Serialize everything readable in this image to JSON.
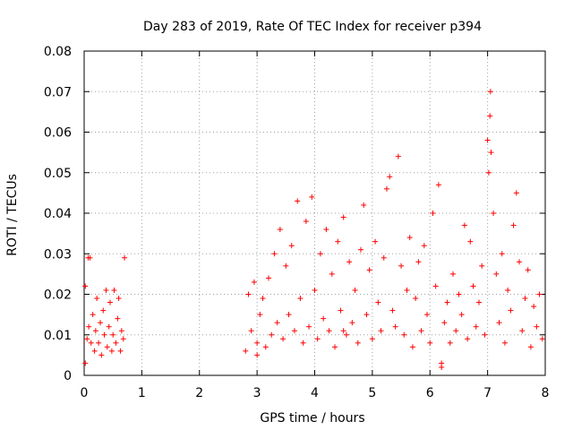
{
  "chart_data": {
    "type": "scatter",
    "title": "Day 283 of 2019, Rate Of TEC Index for receiver p394",
    "xlabel": "GPS time / hours",
    "ylabel": "ROTI / TECUs",
    "xlim": [
      0,
      8
    ],
    "ylim": [
      0,
      0.08
    ],
    "xticks": [
      "0",
      "1",
      "2",
      "3",
      "4",
      "5",
      "6",
      "7",
      "8"
    ],
    "yticks": [
      "0",
      "0.01",
      "0.02",
      "0.03",
      "0.04",
      "0.05",
      "0.06",
      "0.07",
      "0.08"
    ],
    "grid": true,
    "marker": "+",
    "color": "#ff0000",
    "series": [
      {
        "name": "ROTI",
        "points": [
          [
            0.02,
            0.022
          ],
          [
            0.05,
            0.009
          ],
          [
            0.08,
            0.012
          ],
          [
            0.1,
            0.029
          ],
          [
            0.12,
            0.008
          ],
          [
            0.15,
            0.015
          ],
          [
            0.18,
            0.006
          ],
          [
            0.2,
            0.011
          ],
          [
            0.22,
            0.019
          ],
          [
            0.25,
            0.008
          ],
          [
            0.28,
            0.013
          ],
          [
            0.3,
            0.005
          ],
          [
            0.33,
            0.016
          ],
          [
            0.35,
            0.01
          ],
          [
            0.38,
            0.021
          ],
          [
            0.4,
            0.007
          ],
          [
            0.43,
            0.012
          ],
          [
            0.45,
            0.018
          ],
          [
            0.48,
            0.006
          ],
          [
            0.5,
            0.01
          ],
          [
            0.52,
            0.021
          ],
          [
            0.55,
            0.008
          ],
          [
            0.58,
            0.014
          ],
          [
            0.6,
            0.019
          ],
          [
            0.63,
            0.006
          ],
          [
            0.65,
            0.011
          ],
          [
            0.68,
            0.009
          ],
          [
            0.7,
            0.029
          ],
          [
            0.02,
            0.003
          ],
          [
            0.07,
            0.029
          ],
          [
            2.8,
            0.006
          ],
          [
            2.85,
            0.02
          ],
          [
            2.9,
            0.011
          ],
          [
            2.95,
            0.023
          ],
          [
            3.0,
            0.008
          ],
          [
            3.05,
            0.015
          ],
          [
            3.1,
            0.019
          ],
          [
            3.15,
            0.007
          ],
          [
            3.2,
            0.024
          ],
          [
            3.25,
            0.01
          ],
          [
            3.3,
            0.03
          ],
          [
            3.35,
            0.013
          ],
          [
            3.4,
            0.036
          ],
          [
            3.45,
            0.009
          ],
          [
            3.5,
            0.027
          ],
          [
            3.55,
            0.015
          ],
          [
            3.6,
            0.032
          ],
          [
            3.65,
            0.011
          ],
          [
            3.7,
            0.043
          ],
          [
            3.75,
            0.019
          ],
          [
            3.8,
            0.008
          ],
          [
            3.85,
            0.038
          ],
          [
            3.9,
            0.012
          ],
          [
            3.95,
            0.044
          ],
          [
            4.0,
            0.021
          ],
          [
            4.05,
            0.009
          ],
          [
            4.1,
            0.03
          ],
          [
            4.15,
            0.014
          ],
          [
            4.2,
            0.036
          ],
          [
            4.25,
            0.011
          ],
          [
            4.3,
            0.025
          ],
          [
            4.35,
            0.007
          ],
          [
            4.4,
            0.033
          ],
          [
            4.45,
            0.016
          ],
          [
            4.5,
            0.039
          ],
          [
            4.55,
            0.01
          ],
          [
            4.6,
            0.028
          ],
          [
            4.65,
            0.013
          ],
          [
            4.7,
            0.021
          ],
          [
            4.75,
            0.008
          ],
          [
            4.8,
            0.031
          ],
          [
            4.85,
            0.042
          ],
          [
            4.9,
            0.015
          ],
          [
            4.95,
            0.026
          ],
          [
            5.0,
            0.009
          ],
          [
            5.05,
            0.033
          ],
          [
            5.1,
            0.018
          ],
          [
            5.15,
            0.011
          ],
          [
            5.2,
            0.029
          ],
          [
            5.25,
            0.046
          ],
          [
            5.3,
            0.049
          ],
          [
            5.35,
            0.016
          ],
          [
            5.4,
            0.012
          ],
          [
            5.45,
            0.054
          ],
          [
            5.5,
            0.027
          ],
          [
            5.55,
            0.01
          ],
          [
            5.6,
            0.021
          ],
          [
            5.65,
            0.034
          ],
          [
            5.7,
            0.007
          ],
          [
            5.75,
            0.019
          ],
          [
            5.8,
            0.028
          ],
          [
            5.85,
            0.011
          ],
          [
            5.9,
            0.032
          ],
          [
            5.95,
            0.015
          ],
          [
            6.0,
            0.008
          ],
          [
            6.05,
            0.04
          ],
          [
            6.1,
            0.022
          ],
          [
            6.15,
            0.047
          ],
          [
            6.2,
            0.003
          ],
          [
            6.25,
            0.013
          ],
          [
            6.3,
            0.018
          ],
          [
            6.35,
            0.008
          ],
          [
            6.4,
            0.025
          ],
          [
            6.45,
            0.011
          ],
          [
            6.5,
            0.02
          ],
          [
            6.55,
            0.015
          ],
          [
            6.6,
            0.037
          ],
          [
            6.65,
            0.009
          ],
          [
            6.7,
            0.033
          ],
          [
            6.75,
            0.022
          ],
          [
            6.8,
            0.012
          ],
          [
            6.85,
            0.018
          ],
          [
            6.9,
            0.027
          ],
          [
            6.95,
            0.01
          ],
          [
            7.0,
            0.058
          ],
          [
            7.02,
            0.05
          ],
          [
            7.04,
            0.064
          ],
          [
            7.05,
            0.07
          ],
          [
            7.06,
            0.055
          ],
          [
            7.1,
            0.04
          ],
          [
            7.15,
            0.025
          ],
          [
            7.2,
            0.013
          ],
          [
            7.25,
            0.03
          ],
          [
            7.3,
            0.008
          ],
          [
            7.35,
            0.021
          ],
          [
            7.4,
            0.016
          ],
          [
            7.45,
            0.037
          ],
          [
            7.5,
            0.045
          ],
          [
            7.55,
            0.028
          ],
          [
            7.6,
            0.011
          ],
          [
            7.65,
            0.019
          ],
          [
            7.7,
            0.026
          ],
          [
            7.75,
            0.007
          ],
          [
            7.8,
            0.017
          ],
          [
            7.85,
            0.012
          ],
          [
            7.9,
            0.02
          ],
          [
            7.95,
            0.009
          ],
          [
            3.0,
            0.005
          ],
          [
            4.5,
            0.011
          ],
          [
            6.2,
            0.002
          ]
        ]
      }
    ]
  }
}
